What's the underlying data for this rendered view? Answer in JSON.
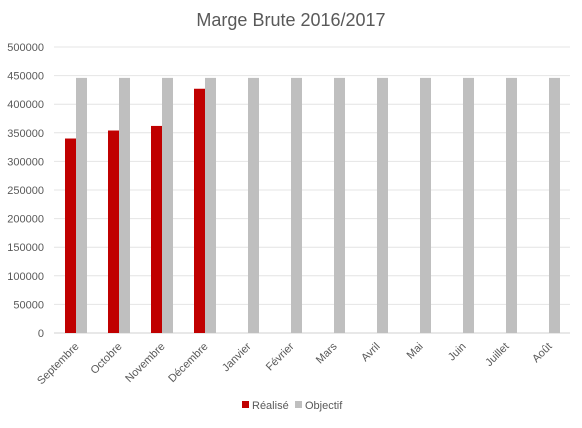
{
  "chart_data": {
    "type": "bar",
    "title": "Marge Brute 2016/2017",
    "xlabel": "",
    "ylabel": "",
    "categories": [
      "Septembre",
      "Octobre",
      "Novembre",
      "Décembre",
      "Janvier",
      "Février",
      "Mars",
      "Avril",
      "Mai",
      "Juin",
      "Juillet",
      "Août"
    ],
    "series": [
      {
        "name": "Réalisé",
        "color": "#C00000",
        "values": [
          340000,
          354000,
          362000,
          427000,
          null,
          null,
          null,
          null,
          null,
          null,
          null,
          null
        ]
      },
      {
        "name": "Objectif",
        "color": "#BFBFBF",
        "values": [
          446000,
          446000,
          446000,
          446000,
          446000,
          446000,
          446000,
          446000,
          446000,
          446000,
          446000,
          446000
        ]
      }
    ],
    "ylim": [
      0,
      500000
    ],
    "yticks": [
      "0",
      "50000",
      "100000",
      "150000",
      "200000",
      "250000",
      "300000",
      "350000",
      "400000",
      "450000",
      "500000"
    ],
    "grid": true,
    "legend_position": "bottom"
  }
}
